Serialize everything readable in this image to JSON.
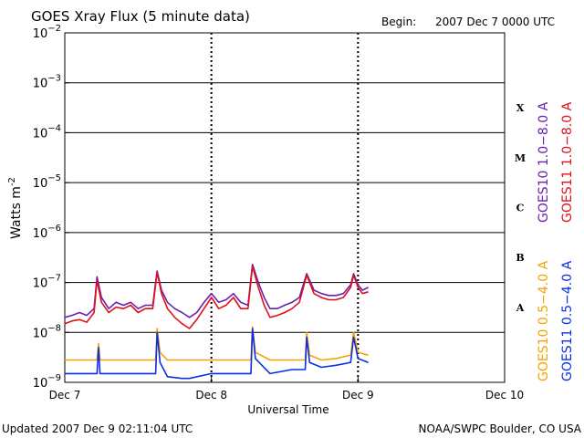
{
  "header": {
    "title": "GOES Xray Flux (5 minute data)",
    "begin_label": "Begin:",
    "begin_value": "2007 Dec 7 0000 UTC"
  },
  "footer": {
    "updated": "Updated 2007 Dec  9 02:11:04 UTC",
    "credit": "NOAA/SWPC Boulder, CO USA"
  },
  "colors": {
    "goes10_long": "#6a1fb0",
    "goes11_long": "#e0101a",
    "goes10_short": "#f5a300",
    "goes11_short": "#0a2fe6"
  },
  "chart_data": {
    "type": "line",
    "title": "GOES Xray Flux (5 minute data)",
    "xlabel": "Universal Time",
    "ylabel": "Watts m",
    "ylabel_sup": "-2",
    "y_scale": "log",
    "ylim": [
      1e-09,
      0.01
    ],
    "x_units": "days since 2007 Dec 7 0000 UTC",
    "xlim": [
      0,
      3
    ],
    "x_ticks": [
      {
        "x": 0,
        "label": "Dec 7"
      },
      {
        "x": 1,
        "label": "Dec 8"
      },
      {
        "x": 2,
        "label": "Dec 9"
      },
      {
        "x": 3,
        "label": "Dec 10"
      }
    ],
    "y_ticks": [
      {
        "exp": -2,
        "base": "10",
        "sup": "−2"
      },
      {
        "exp": -3,
        "base": "10",
        "sup": "−3"
      },
      {
        "exp": -4,
        "base": "10",
        "sup": "−4"
      },
      {
        "exp": -5,
        "base": "10",
        "sup": "−5"
      },
      {
        "exp": -6,
        "base": "10",
        "sup": "−6"
      },
      {
        "exp": -7,
        "base": "10",
        "sup": "−7"
      },
      {
        "exp": -8,
        "base": "10",
        "sup": "−8"
      },
      {
        "exp": -9,
        "base": "10",
        "sup": "−9"
      }
    ],
    "flare_classes": [
      {
        "label": "X",
        "exp": -3.5
      },
      {
        "label": "M",
        "exp": -4.5
      },
      {
        "label": "C",
        "exp": -5.5
      },
      {
        "label": "B",
        "exp": -6.5
      },
      {
        "label": "A",
        "exp": -7.5
      }
    ],
    "day_markers": [
      1,
      2
    ],
    "legend": {
      "placement": "right",
      "long": [
        {
          "text": "GOES10 1.0−8.0 A",
          "color": "#6a1fb0"
        },
        {
          "text": "GOES11 1.0−8.0 A",
          "color": "#e0101a"
        }
      ],
      "short": [
        {
          "text": "GOES10 0.5−4.0 A",
          "color": "#f5a300"
        },
        {
          "text": "GOES11 0.5−4.0 A",
          "color": "#0a2fe6"
        }
      ]
    },
    "series": [
      {
        "name": "GOES10 1.0-8.0 A",
        "color": "#6a1fb0",
        "points": [
          [
            0,
            2e-08
          ],
          [
            0.05,
            2.2e-08
          ],
          [
            0.1,
            2.5e-08
          ],
          [
            0.15,
            2.2e-08
          ],
          [
            0.2,
            3e-08
          ],
          [
            0.22,
            1.3e-07
          ],
          [
            0.25,
            5e-08
          ],
          [
            0.3,
            3e-08
          ],
          [
            0.35,
            4e-08
          ],
          [
            0.4,
            3.5e-08
          ],
          [
            0.45,
            4e-08
          ],
          [
            0.5,
            3e-08
          ],
          [
            0.55,
            3.5e-08
          ],
          [
            0.6,
            3.5e-08
          ],
          [
            0.63,
            1.7e-07
          ],
          [
            0.66,
            7e-08
          ],
          [
            0.7,
            4e-08
          ],
          [
            0.75,
            3e-08
          ],
          [
            0.8,
            2.5e-08
          ],
          [
            0.85,
            2e-08
          ],
          [
            0.9,
            2.5e-08
          ],
          [
            0.95,
            4e-08
          ],
          [
            1.0,
            6e-08
          ],
          [
            1.05,
            4e-08
          ],
          [
            1.1,
            4.5e-08
          ],
          [
            1.15,
            6e-08
          ],
          [
            1.2,
            4e-08
          ],
          [
            1.25,
            3.5e-08
          ],
          [
            1.28,
            2.3e-07
          ],
          [
            1.32,
            1e-07
          ],
          [
            1.36,
            5e-08
          ],
          [
            1.4,
            3e-08
          ],
          [
            1.45,
            3e-08
          ],
          [
            1.5,
            3.5e-08
          ],
          [
            1.55,
            4e-08
          ],
          [
            1.6,
            5e-08
          ],
          [
            1.65,
            1.5e-07
          ],
          [
            1.7,
            7e-08
          ],
          [
            1.75,
            6e-08
          ],
          [
            1.8,
            5.5e-08
          ],
          [
            1.85,
            5.5e-08
          ],
          [
            1.9,
            6e-08
          ],
          [
            1.95,
            9e-08
          ],
          [
            1.97,
            1.5e-07
          ],
          [
            2.0,
            9e-08
          ],
          [
            2.03,
            7e-08
          ],
          [
            2.07,
            8e-08
          ]
        ]
      },
      {
        "name": "GOES11 1.0-8.0 A",
        "color": "#e0101a",
        "points": [
          [
            0,
            1.5e-08
          ],
          [
            0.05,
            1.7e-08
          ],
          [
            0.1,
            1.8e-08
          ],
          [
            0.15,
            1.6e-08
          ],
          [
            0.2,
            2.5e-08
          ],
          [
            0.22,
            1.1e-07
          ],
          [
            0.25,
            4e-08
          ],
          [
            0.3,
            2.5e-08
          ],
          [
            0.35,
            3.2e-08
          ],
          [
            0.4,
            3e-08
          ],
          [
            0.45,
            3.5e-08
          ],
          [
            0.5,
            2.5e-08
          ],
          [
            0.55,
            3e-08
          ],
          [
            0.6,
            3e-08
          ],
          [
            0.63,
            1.6e-07
          ],
          [
            0.66,
            6e-08
          ],
          [
            0.7,
            3e-08
          ],
          [
            0.75,
            2e-08
          ],
          [
            0.8,
            1.5e-08
          ],
          [
            0.85,
            1.2e-08
          ],
          [
            0.9,
            1.8e-08
          ],
          [
            0.95,
            3e-08
          ],
          [
            1.0,
            5e-08
          ],
          [
            1.05,
            3e-08
          ],
          [
            1.1,
            3.5e-08
          ],
          [
            1.15,
            5e-08
          ],
          [
            1.2,
            3e-08
          ],
          [
            1.25,
            3e-08
          ],
          [
            1.28,
            2.1e-07
          ],
          [
            1.32,
            8e-08
          ],
          [
            1.36,
            3.5e-08
          ],
          [
            1.4,
            2e-08
          ],
          [
            1.45,
            2.2e-08
          ],
          [
            1.5,
            2.5e-08
          ],
          [
            1.55,
            3e-08
          ],
          [
            1.6,
            4e-08
          ],
          [
            1.65,
            1.4e-07
          ],
          [
            1.7,
            6e-08
          ],
          [
            1.75,
            5e-08
          ],
          [
            1.8,
            4.5e-08
          ],
          [
            1.85,
            4.5e-08
          ],
          [
            1.9,
            5e-08
          ],
          [
            1.95,
            8e-08
          ],
          [
            1.97,
            1.4e-07
          ],
          [
            2.0,
            8e-08
          ],
          [
            2.03,
            6e-08
          ],
          [
            2.07,
            6.5e-08
          ]
        ]
      },
      {
        "name": "GOES10 0.5-4.0 A",
        "color": "#f5a300",
        "points": [
          [
            0,
            2.8e-09
          ],
          [
            0.1,
            2.8e-09
          ],
          [
            0.22,
            2.8e-09
          ],
          [
            0.23,
            6e-09
          ],
          [
            0.24,
            2.8e-09
          ],
          [
            0.4,
            2.8e-09
          ],
          [
            0.5,
            2.8e-09
          ],
          [
            0.62,
            2.8e-09
          ],
          [
            0.63,
            1.2e-08
          ],
          [
            0.65,
            4e-09
          ],
          [
            0.7,
            2.8e-09
          ],
          [
            0.8,
            2.8e-09
          ],
          [
            0.85,
            2.8e-09
          ],
          [
            1.0,
            2.8e-09
          ],
          [
            1.27,
            2.8e-09
          ],
          [
            1.28,
            1.3e-08
          ],
          [
            1.3,
            4e-09
          ],
          [
            1.4,
            2.8e-09
          ],
          [
            1.55,
            2.8e-09
          ],
          [
            1.64,
            2.8e-09
          ],
          [
            1.65,
            1e-08
          ],
          [
            1.67,
            3.5e-09
          ],
          [
            1.75,
            2.8e-09
          ],
          [
            1.85,
            3e-09
          ],
          [
            1.95,
            3.5e-09
          ],
          [
            1.97,
            1e-08
          ],
          [
            2.0,
            4e-09
          ],
          [
            2.07,
            3.5e-09
          ]
        ]
      },
      {
        "name": "GOES11 0.5-4.0 A",
        "color": "#0a2fe6",
        "points": [
          [
            0,
            1.5e-09
          ],
          [
            0.1,
            1.5e-09
          ],
          [
            0.22,
            1.5e-09
          ],
          [
            0.23,
            5e-09
          ],
          [
            0.24,
            1.5e-09
          ],
          [
            0.4,
            1.5e-09
          ],
          [
            0.5,
            1.5e-09
          ],
          [
            0.62,
            1.5e-09
          ],
          [
            0.63,
            1e-08
          ],
          [
            0.65,
            2.5e-09
          ],
          [
            0.7,
            1.3e-09
          ],
          [
            0.8,
            1.2e-09
          ],
          [
            0.85,
            1.2e-09
          ],
          [
            1.0,
            1.5e-09
          ],
          [
            1.27,
            1.5e-09
          ],
          [
            1.28,
            1.2e-08
          ],
          [
            1.3,
            3e-09
          ],
          [
            1.4,
            1.5e-09
          ],
          [
            1.55,
            1.8e-09
          ],
          [
            1.64,
            1.8e-09
          ],
          [
            1.65,
            8e-09
          ],
          [
            1.67,
            2.5e-09
          ],
          [
            1.75,
            2e-09
          ],
          [
            1.85,
            2.2e-09
          ],
          [
            1.95,
            2.5e-09
          ],
          [
            1.97,
            8e-09
          ],
          [
            2.0,
            3e-09
          ],
          [
            2.07,
            2.5e-09
          ]
        ]
      }
    ]
  }
}
